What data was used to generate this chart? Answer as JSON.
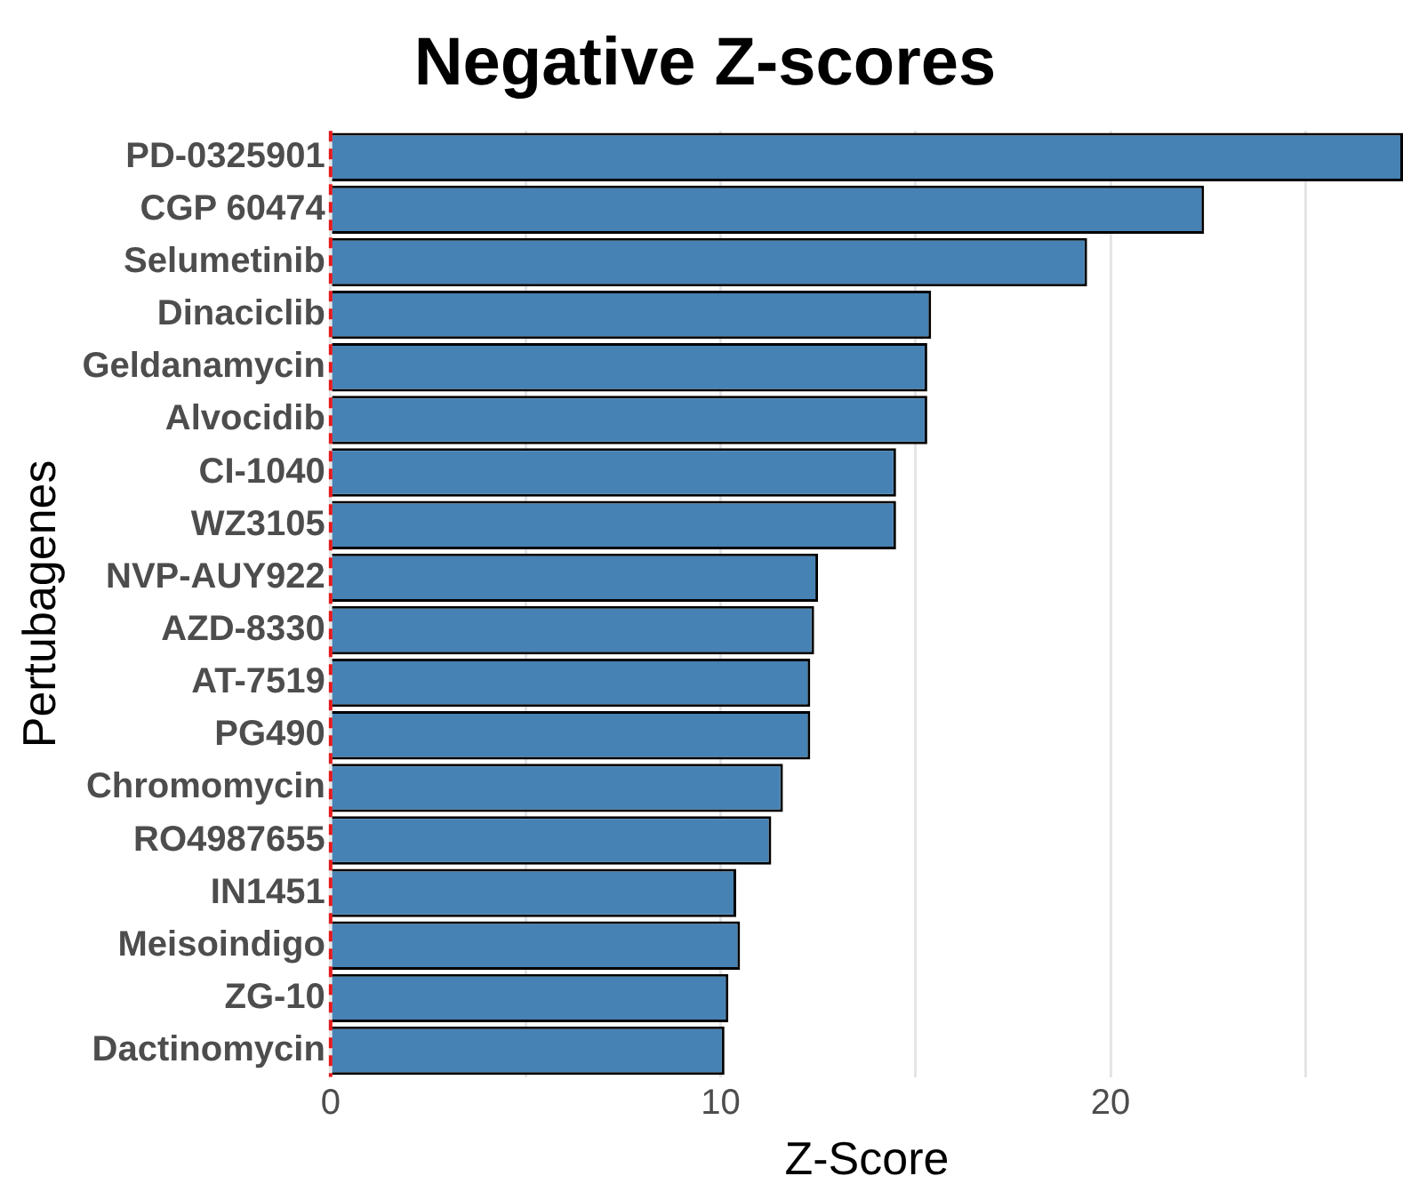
{
  "chart_data": {
    "type": "bar",
    "orientation": "horizontal",
    "title": "Negative Z-scores",
    "xlabel": "Z-Score",
    "ylabel": "Pertubagenes",
    "categories": [
      "PD-0325901",
      "CGP 60474",
      "Selumetinib",
      "Dinaciclib",
      "Geldanamycin",
      "Alvocidib",
      "CI-1040",
      "WZ3105",
      "NVP-AUY922",
      "AZD-8330",
      "AT-7519",
      "PG490",
      "Chromomycin",
      "RO4987655",
      "IN1451",
      "Meisoindigo",
      "ZG-10",
      "Dactinomycin"
    ],
    "values": [
      27.5,
      22.4,
      19.4,
      15.4,
      15.3,
      15.3,
      14.5,
      14.5,
      12.5,
      12.4,
      12.3,
      12.3,
      11.6,
      11.3,
      10.4,
      10.5,
      10.2,
      10.1
    ],
    "color": "#4682b4",
    "xlim": [
      0,
      27.5
    ],
    "xticks": [
      0,
      {
        "value": 5,
        "label": null
      },
      10,
      {
        "value": 15,
        "label": null
      },
      20,
      {
        "value": 25,
        "label": null
      }
    ],
    "grid": "x",
    "ref_lines": [
      {
        "axis": "x",
        "value": 0,
        "color": "#e41a1c",
        "line_style": "dashed"
      }
    ]
  }
}
